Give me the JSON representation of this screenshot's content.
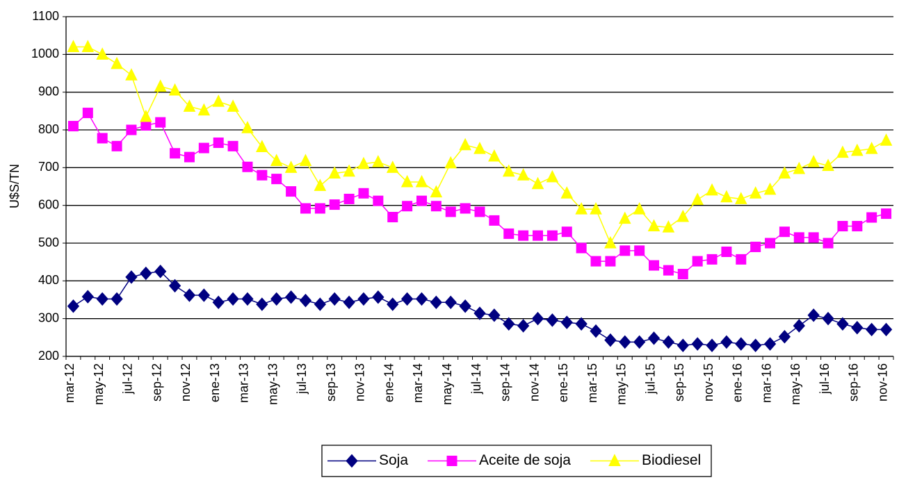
{
  "chart_data": {
    "type": "line",
    "y_label": "U$S/TN",
    "categories": [
      "mar-12",
      null,
      "may-12",
      null,
      "jul-12",
      null,
      "sep-12",
      null,
      "nov-12",
      null,
      "ene-13",
      null,
      "mar-13",
      null,
      "may-13",
      null,
      "jul-13",
      null,
      "sep-13",
      null,
      "nov-13",
      null,
      "ene-14",
      null,
      "mar-14",
      null,
      "may-14",
      null,
      "jul-14",
      null,
      "sep-14",
      null,
      "nov-14",
      null,
      "ene-15",
      null,
      "mar-15",
      null,
      "may-15",
      null,
      "jul-15",
      null,
      "sep-15",
      null,
      "nov-15",
      null,
      "ene-16",
      null,
      "mar-16",
      null,
      "may-16",
      null,
      "jul-16",
      null,
      "sep-16",
      null,
      "nov-16"
    ],
    "series": [
      {
        "name": "Soja",
        "color": "#000080",
        "marker": "diamond",
        "values": [
          333,
          358,
          352,
          352,
          410,
          420,
          425,
          387,
          362,
          362,
          343,
          352,
          352,
          338,
          352,
          357,
          348,
          338,
          352,
          343,
          352,
          357,
          338,
          352,
          352,
          343,
          343,
          333,
          314,
          309,
          286,
          281,
          300,
          296,
          290,
          286,
          267,
          243,
          238,
          238,
          248,
          238,
          229,
          233,
          229,
          238,
          233,
          229,
          233,
          252,
          281,
          309,
          300,
          286,
          276,
          271,
          271
        ]
      },
      {
        "name": "Aceite de soja",
        "color": "#ff00ff",
        "marker": "square",
        "values": [
          810,
          845,
          778,
          757,
          800,
          812,
          820,
          738,
          728,
          752,
          766,
          757,
          702,
          680,
          670,
          637,
          592,
          592,
          602,
          617,
          632,
          612,
          569,
          598,
          612,
          598,
          583,
          592,
          583,
          560,
          525,
          520,
          520,
          520,
          530,
          487,
          452,
          452,
          480,
          480,
          441,
          428,
          418,
          452,
          457,
          477,
          457,
          490,
          500,
          530,
          515,
          515,
          500,
          545,
          545,
          568,
          578
        ]
      },
      {
        "name": "Biodiesel",
        "color": "#ffff00",
        "marker": "triangle",
        "values": [
          1020,
          1020,
          1000,
          975,
          945,
          835,
          915,
          905,
          862,
          852,
          875,
          862,
          805,
          755,
          718,
          700,
          718,
          652,
          685,
          690,
          710,
          715,
          700,
          662,
          662,
          635,
          712,
          760,
          750,
          730,
          690,
          680,
          657,
          675,
          632,
          590,
          590,
          500,
          565,
          590,
          545,
          542,
          570,
          615,
          640,
          622,
          617,
          632,
          642,
          685,
          697,
          715,
          705,
          740,
          745,
          750,
          772
        ]
      }
    ],
    "ylim": [
      200,
      1100
    ],
    "yticks": [
      200,
      300,
      400,
      500,
      600,
      700,
      800,
      900,
      1000,
      1100
    ],
    "grid": true,
    "legend": "bottom"
  }
}
